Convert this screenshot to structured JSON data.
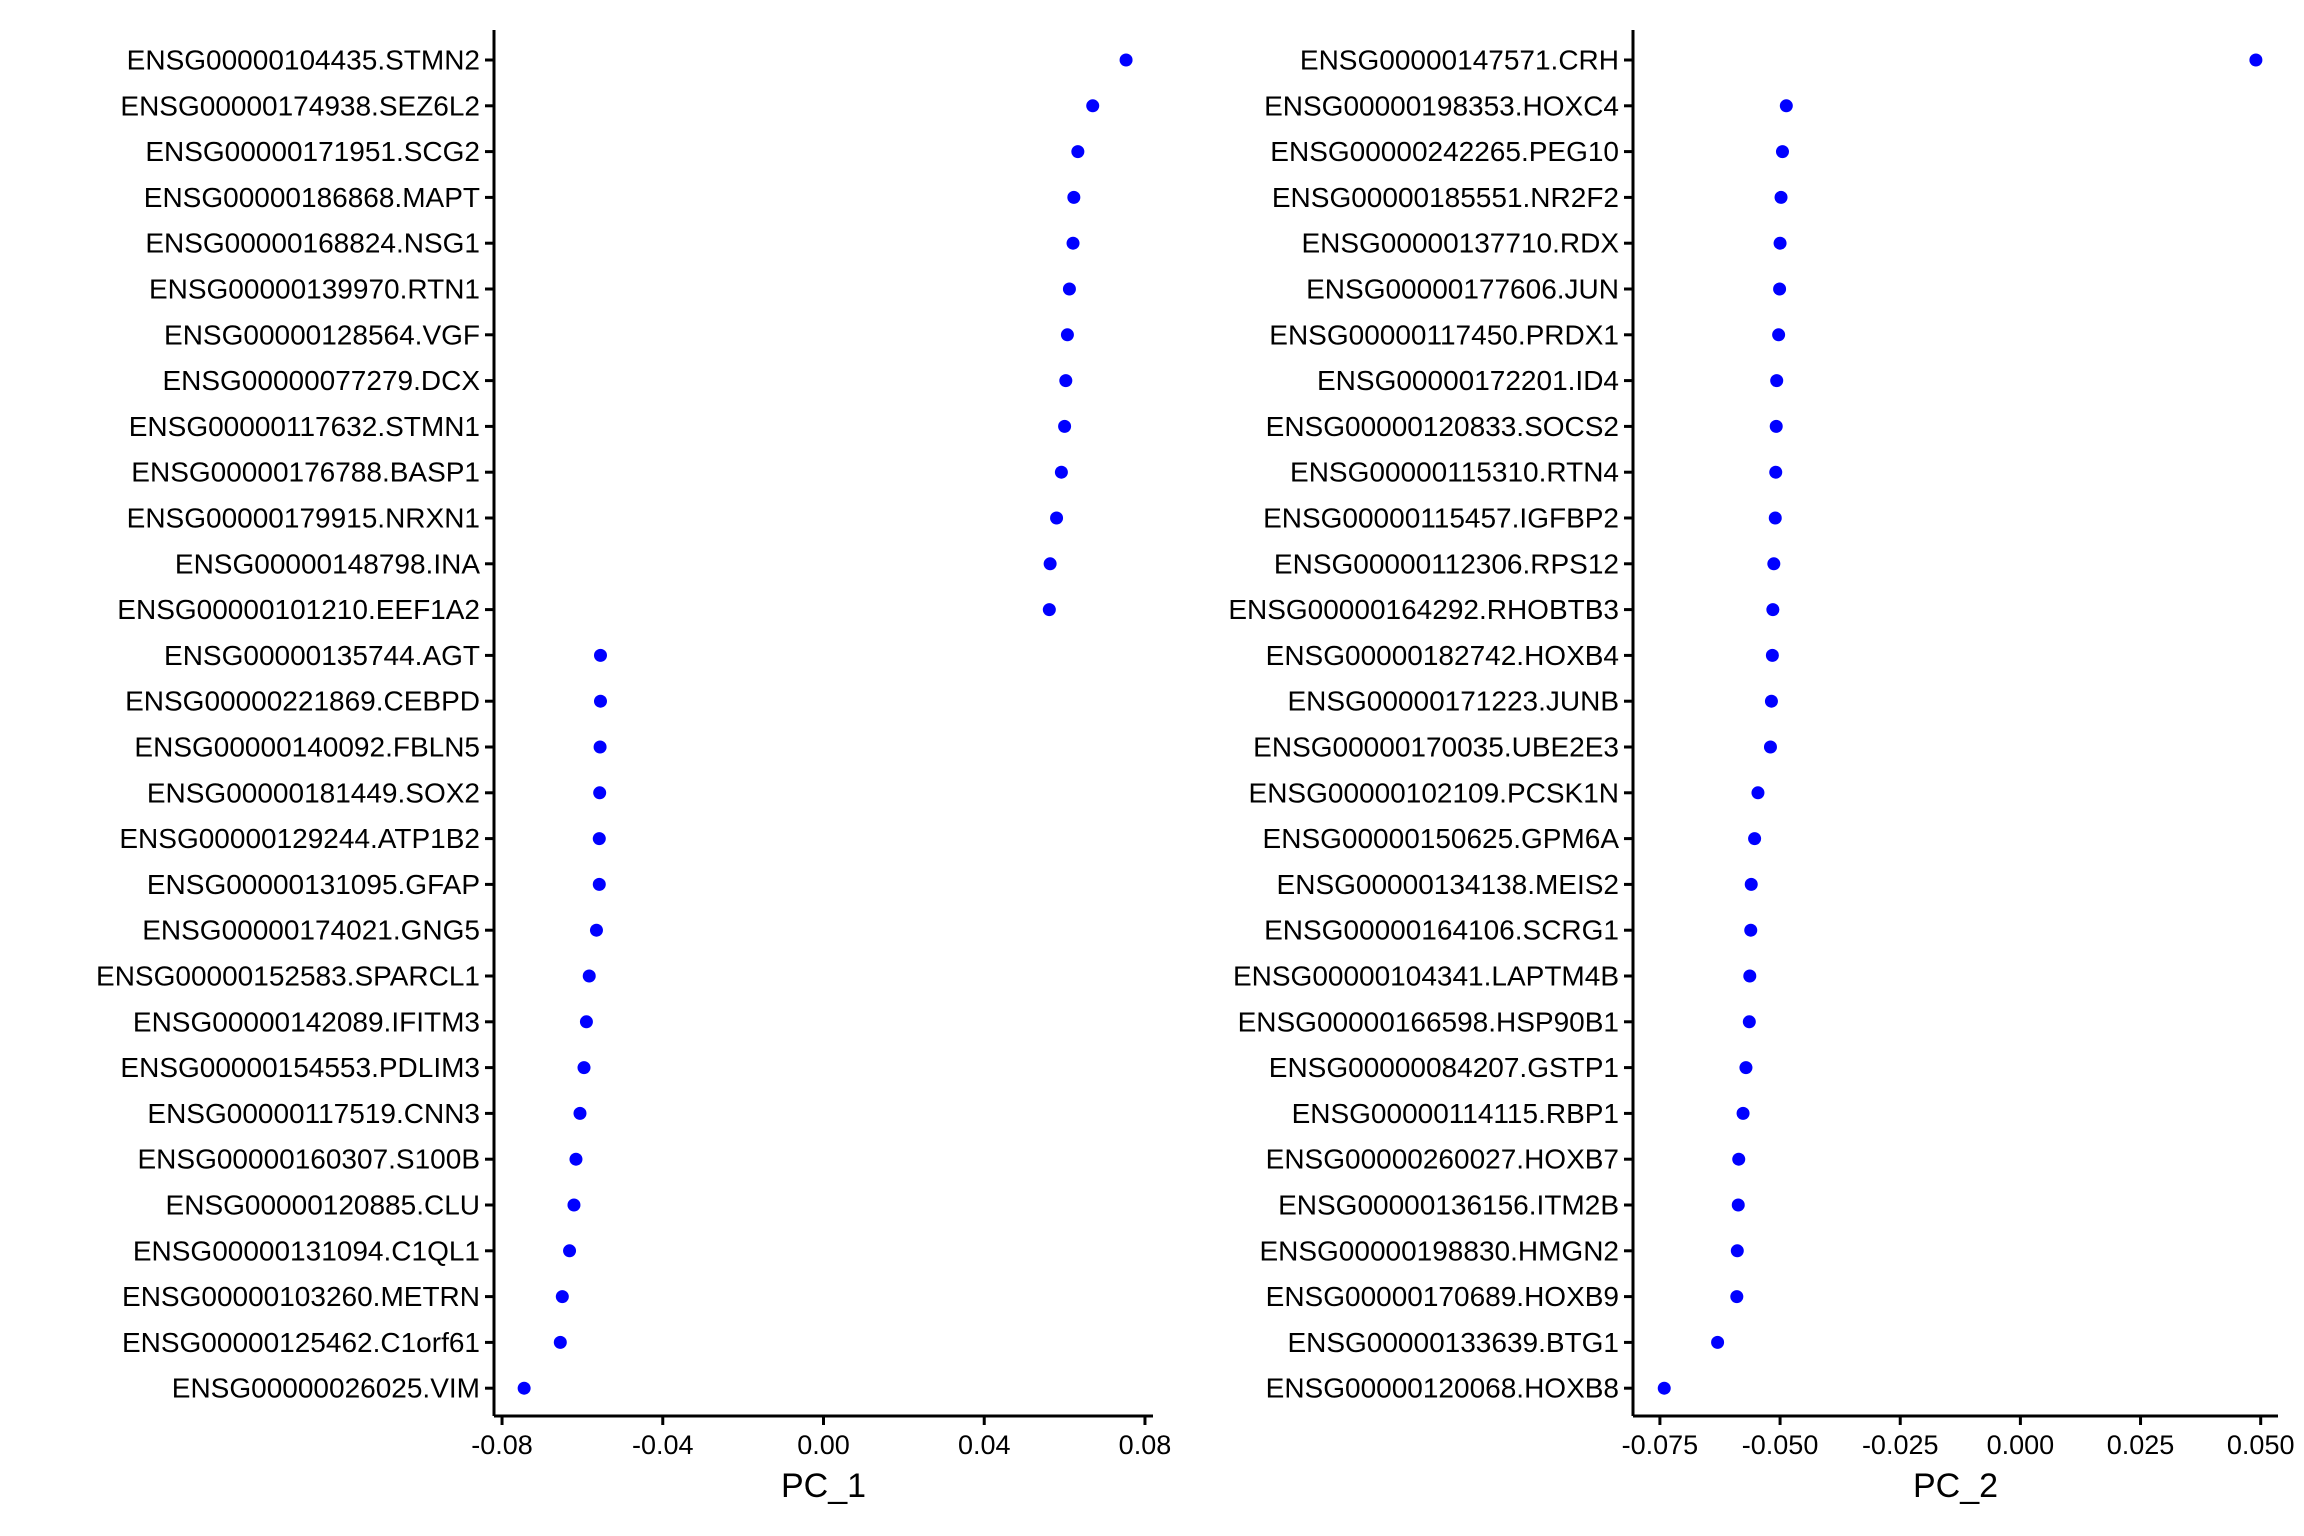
{
  "chart_data": [
    {
      "type": "scatter",
      "xlabel": "PC_1",
      "ylabel": "",
      "xlim": [
        -0.082,
        0.082
      ],
      "xticks": [
        -0.08,
        -0.04,
        0.0,
        0.04,
        0.08
      ],
      "xtick_labels": [
        "-0.08",
        "-0.04",
        "0.00",
        "0.04",
        "0.08"
      ],
      "point_color": "#0000ff",
      "categories": [
        "ENSG00000104435.STMN2",
        "ENSG00000174938.SEZ6L2",
        "ENSG00000171951.SCG2",
        "ENSG00000186868.MAPT",
        "ENSG00000168824.NSG1",
        "ENSG00000139970.RTN1",
        "ENSG00000128564.VGF",
        "ENSG00000077279.DCX",
        "ENSG00000117632.STMN1",
        "ENSG00000176788.BASP1",
        "ENSG00000179915.NRXN1",
        "ENSG00000148798.INA",
        "ENSG00000101210.EEF1A2",
        "ENSG00000135744.AGT",
        "ENSG00000221869.CEBPD",
        "ENSG00000140092.FBLN5",
        "ENSG00000181449.SOX2",
        "ENSG00000129244.ATP1B2",
        "ENSG00000131095.GFAP",
        "ENSG00000174021.GNG5",
        "ENSG00000152583.SPARCL1",
        "ENSG00000142089.IFITM3",
        "ENSG00000154553.PDLIM3",
        "ENSG00000117519.CNN3",
        "ENSG00000160307.S100B",
        "ENSG00000120885.CLU",
        "ENSG00000131094.C1QL1",
        "ENSG00000103260.METRN",
        "ENSG00000125462.C1orf61",
        "ENSG00000026025.VIM"
      ],
      "values": [
        0.0753,
        0.067,
        0.0633,
        0.0623,
        0.0621,
        0.0612,
        0.0607,
        0.0603,
        0.06,
        0.0592,
        0.058,
        0.0564,
        0.0562,
        -0.0555,
        -0.0555,
        -0.0556,
        -0.0557,
        -0.0558,
        -0.0558,
        -0.0565,
        -0.0583,
        -0.059,
        -0.0596,
        -0.0606,
        -0.0616,
        -0.0621,
        -0.0632,
        -0.065,
        -0.0655,
        -0.0745
      ]
    },
    {
      "type": "scatter",
      "xlabel": "PC_2",
      "ylabel": "",
      "xlim": [
        -0.0806,
        0.0536
      ],
      "xticks": [
        -0.075,
        -0.05,
        -0.025,
        0.0,
        0.025,
        0.05
      ],
      "xtick_labels": [
        "-0.075",
        "-0.050",
        "-0.025",
        "0.000",
        "0.025",
        "0.050"
      ],
      "point_color": "#0000ff",
      "categories": [
        "ENSG00000147571.CRH",
        "ENSG00000198353.HOXC4",
        "ENSG00000242265.PEG10",
        "ENSG00000185551.NR2F2",
        "ENSG00000137710.RDX",
        "ENSG00000177606.JUN",
        "ENSG00000117450.PRDX1",
        "ENSG00000172201.ID4",
        "ENSG00000120833.SOCS2",
        "ENSG00000115310.RTN4",
        "ENSG00000115457.IGFBP2",
        "ENSG00000112306.RPS12",
        "ENSG00000164292.RHOBTB3",
        "ENSG00000182742.HOXB4",
        "ENSG00000171223.JUNB",
        "ENSG00000170035.UBE2E3",
        "ENSG00000102109.PCSK1N",
        "ENSG00000150625.GPM6A",
        "ENSG00000134138.MEIS2",
        "ENSG00000164106.SCRG1",
        "ENSG00000104341.LAPTM4B",
        "ENSG00000166598.HSP90B1",
        "ENSG00000084207.GSTP1",
        "ENSG00000114115.RBP1",
        "ENSG00000260027.HOXB7",
        "ENSG00000136156.ITM2B",
        "ENSG00000198830.HMGN2",
        "ENSG00000170689.HOXB9",
        "ENSG00000133639.BTG1",
        "ENSG00000120068.HOXB8"
      ],
      "values": [
        0.049,
        -0.0487,
        -0.0495,
        -0.0498,
        -0.05,
        -0.0501,
        -0.0503,
        -0.0507,
        -0.0508,
        -0.0509,
        -0.051,
        -0.0513,
        -0.0515,
        -0.0516,
        -0.0518,
        -0.052,
        -0.0546,
        -0.0553,
        -0.056,
        -0.0561,
        -0.0563,
        -0.0564,
        -0.0571,
        -0.0577,
        -0.0586,
        -0.0587,
        -0.0589,
        -0.059,
        -0.063,
        -0.0741
      ]
    }
  ]
}
